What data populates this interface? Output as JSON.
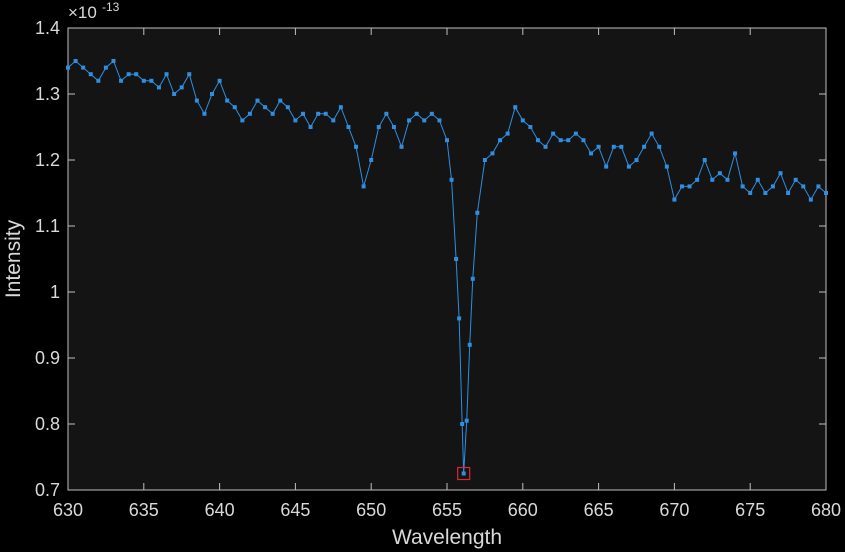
{
  "chart_data": {
    "type": "line",
    "xlabel": "Wavelength",
    "ylabel": "Intensity",
    "y_exponent_label": {
      "base": "×10",
      "exponent": "-13"
    },
    "x": [
      630,
      630.5,
      631,
      631.5,
      632,
      632.5,
      633,
      633.5,
      634,
      634.5,
      635,
      635.5,
      636,
      636.5,
      637,
      637.5,
      638,
      638.5,
      639,
      639.5,
      640,
      640.5,
      641,
      641.5,
      642,
      642.5,
      643,
      643.5,
      644,
      644.5,
      645,
      645.5,
      646,
      646.5,
      647,
      647.5,
      648,
      648.5,
      649,
      649.5,
      650,
      650.5,
      651,
      651.5,
      652,
      652.5,
      653,
      653.5,
      654,
      654.5,
      655,
      655.3,
      655.6,
      655.8,
      656.0,
      656.1,
      656.3,
      656.5,
      656.7,
      657.0,
      657.5,
      658,
      658.5,
      659,
      659.5,
      660,
      660.5,
      661,
      661.5,
      662,
      662.5,
      663,
      663.5,
      664,
      664.5,
      665,
      665.5,
      666,
      666.5,
      667,
      667.5,
      668,
      668.5,
      669,
      669.5,
      670,
      670.5,
      671,
      671.5,
      672,
      672.5,
      673,
      673.5,
      674,
      674.5,
      675,
      675.5,
      676,
      676.5,
      677,
      677.5,
      678,
      678.5,
      679,
      679.5,
      680
    ],
    "series": [
      {
        "name": "Intensity",
        "color": "#2f8ee0",
        "values": [
          1.34,
          1.35,
          1.34,
          1.33,
          1.32,
          1.34,
          1.35,
          1.32,
          1.33,
          1.33,
          1.32,
          1.32,
          1.31,
          1.33,
          1.3,
          1.31,
          1.33,
          1.29,
          1.27,
          1.3,
          1.32,
          1.29,
          1.28,
          1.26,
          1.27,
          1.29,
          1.28,
          1.27,
          1.29,
          1.28,
          1.26,
          1.27,
          1.25,
          1.27,
          1.27,
          1.26,
          1.28,
          1.25,
          1.22,
          1.16,
          1.2,
          1.25,
          1.27,
          1.25,
          1.22,
          1.26,
          1.27,
          1.26,
          1.27,
          1.26,
          1.23,
          1.17,
          1.05,
          0.96,
          0.8,
          0.725,
          0.805,
          0.92,
          1.02,
          1.12,
          1.2,
          1.21,
          1.23,
          1.24,
          1.28,
          1.26,
          1.25,
          1.23,
          1.22,
          1.24,
          1.23,
          1.23,
          1.24,
          1.23,
          1.21,
          1.22,
          1.19,
          1.22,
          1.22,
          1.19,
          1.2,
          1.22,
          1.24,
          1.22,
          1.19,
          1.14,
          1.16,
          1.16,
          1.17,
          1.2,
          1.17,
          1.18,
          1.17,
          1.21,
          1.16,
          1.15,
          1.17,
          1.15,
          1.16,
          1.18,
          1.15,
          1.17,
          1.16,
          1.14,
          1.16,
          1.15
        ]
      }
    ],
    "highlighted_index": 55,
    "highlight_color": "#e0262b",
    "xlim": [
      630,
      680
    ],
    "xticks": [
      630,
      635,
      640,
      645,
      650,
      655,
      660,
      665,
      670,
      675,
      680
    ],
    "ylim": [
      0.7,
      1.4
    ],
    "yticks": [
      0.7,
      0.8,
      0.9,
      1,
      1.1,
      1.2,
      1.3,
      1.4
    ],
    "grid": false
  }
}
